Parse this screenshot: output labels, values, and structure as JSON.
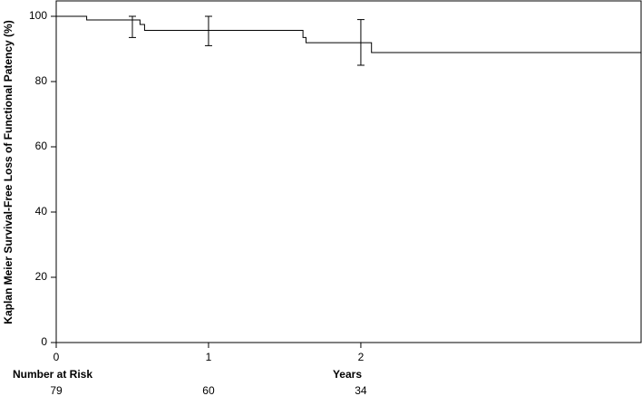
{
  "chart_data": {
    "type": "step",
    "y_label": "Kaplan Meier Survival-Free Loss of Functional Patency (%)",
    "x_label": "Years",
    "x": [
      0,
      0.2,
      0.55,
      0.58,
      1.62,
      1.64,
      2.07
    ],
    "values": [
      100,
      98.9,
      97.5,
      95.7,
      93.5,
      91.9,
      88.9
    ],
    "color": "#000000",
    "errorbars": {
      "x": [
        0.5,
        1,
        2
      ],
      "lower": [
        93.5,
        91,
        85
      ],
      "upper": [
        100,
        100,
        99
      ]
    },
    "xlim": [
      0,
      3.84
    ],
    "xticks": [
      0,
      1,
      2
    ],
    "ylim": [
      0,
      100
    ],
    "yticks": [
      0,
      20,
      40,
      60,
      80,
      100
    ],
    "risk_table": {
      "label": "Number at Risk",
      "x": [
        0,
        1,
        2
      ],
      "counts": [
        79,
        60,
        34
      ]
    }
  }
}
